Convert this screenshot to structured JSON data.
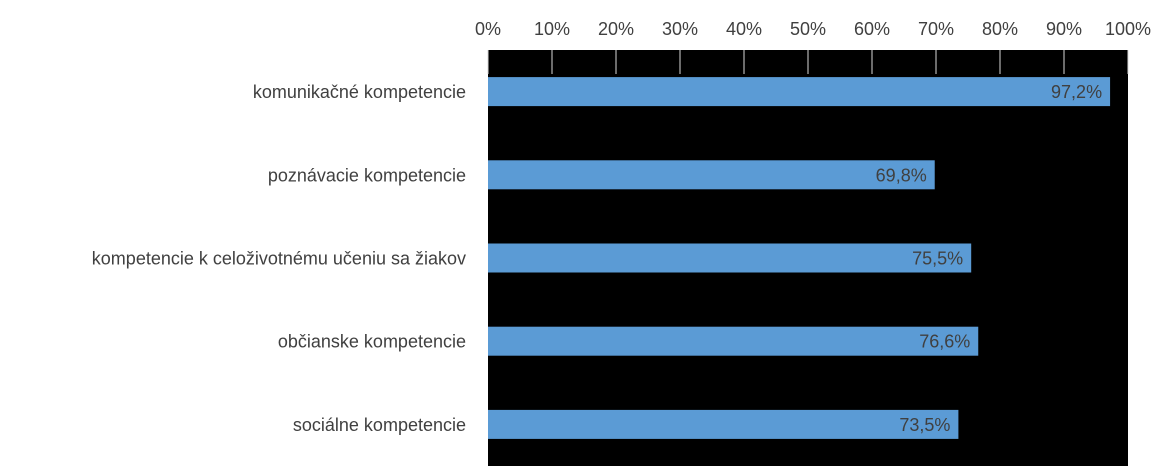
{
  "chart_data": {
    "type": "bar",
    "orientation": "horizontal",
    "categories": [
      "komunikačné kompetencie",
      "poznávacie kompetencie",
      "kompetencie k celoživotnému učeniu sa žiakov",
      "občianske kompetencie",
      "sociálne kompetencie"
    ],
    "values": [
      97.2,
      69.8,
      75.5,
      76.6,
      73.5
    ],
    "value_labels": [
      "97,2%",
      "69,8%",
      "75,5%",
      "76,6%",
      "73,5%"
    ],
    "xlim": [
      0,
      100
    ],
    "x_ticks": [
      0,
      10,
      20,
      30,
      40,
      50,
      60,
      70,
      80,
      90,
      100
    ],
    "x_tick_labels": [
      "0%",
      "10%",
      "20%",
      "30%",
      "40%",
      "50%",
      "60%",
      "70%",
      "80%",
      "90%",
      "100%"
    ],
    "x_axis_position": "top",
    "grid": true,
    "title": "",
    "xlabel": "",
    "ylabel": "",
    "colors": {
      "bar": "#5b9bd5",
      "plot_background": "#000000",
      "grid": "#d9d9d9",
      "text": "#404040",
      "data_label": "#404040"
    }
  }
}
